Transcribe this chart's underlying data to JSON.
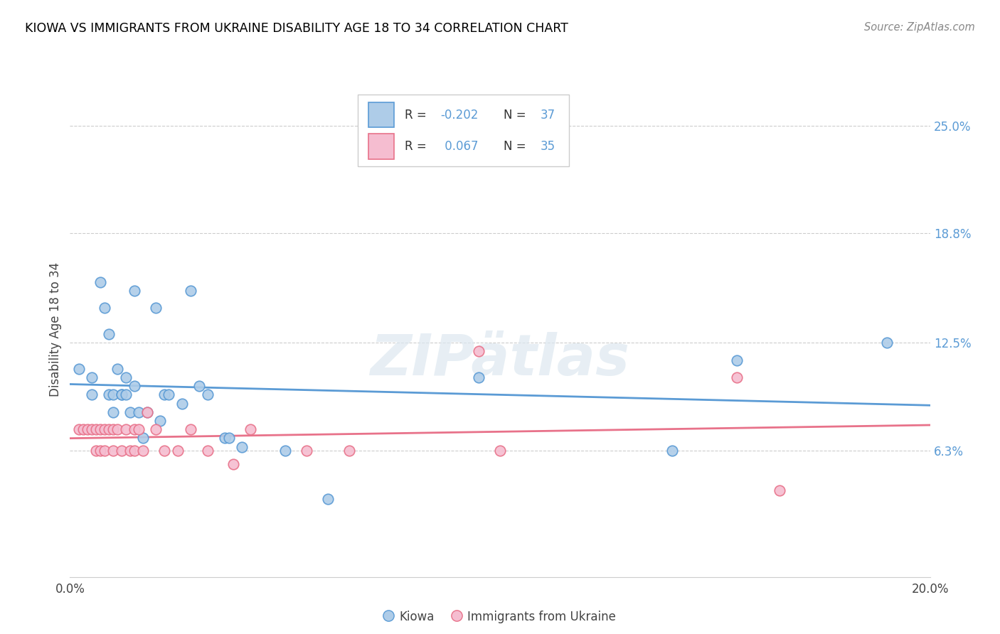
{
  "title": "KIOWA VS IMMIGRANTS FROM UKRAINE DISABILITY AGE 18 TO 34 CORRELATION CHART",
  "source": "Source: ZipAtlas.com",
  "ylabel": "Disability Age 18 to 34",
  "ytick_labels": [
    "6.3%",
    "12.5%",
    "18.8%",
    "25.0%"
  ],
  "ytick_values": [
    0.063,
    0.125,
    0.188,
    0.25
  ],
  "xmin": 0.0,
  "xmax": 0.2,
  "ymin": -0.01,
  "ymax": 0.275,
  "legend_r_kiowa": "-0.202",
  "legend_n_kiowa": "37",
  "legend_r_ukraine": "0.067",
  "legend_n_ukraine": "35",
  "kiowa_color": "#aecce8",
  "ukraine_color": "#f5bdd0",
  "kiowa_line_color": "#5b9bd5",
  "ukraine_line_color": "#e8728a",
  "kiowa_scatter_x": [
    0.002,
    0.005,
    0.005,
    0.007,
    0.008,
    0.009,
    0.009,
    0.01,
    0.01,
    0.011,
    0.012,
    0.012,
    0.013,
    0.013,
    0.014,
    0.015,
    0.015,
    0.016,
    0.017,
    0.018,
    0.02,
    0.021,
    0.022,
    0.023,
    0.026,
    0.028,
    0.03,
    0.032,
    0.036,
    0.037,
    0.04,
    0.05,
    0.06,
    0.095,
    0.14,
    0.155,
    0.19
  ],
  "kiowa_scatter_y": [
    0.11,
    0.105,
    0.095,
    0.16,
    0.145,
    0.13,
    0.095,
    0.095,
    0.085,
    0.11,
    0.095,
    0.095,
    0.105,
    0.095,
    0.085,
    0.155,
    0.1,
    0.085,
    0.07,
    0.085,
    0.145,
    0.08,
    0.095,
    0.095,
    0.09,
    0.155,
    0.1,
    0.095,
    0.07,
    0.07,
    0.065,
    0.063,
    0.035,
    0.105,
    0.063,
    0.115,
    0.125
  ],
  "ukraine_scatter_x": [
    0.002,
    0.003,
    0.004,
    0.005,
    0.006,
    0.006,
    0.007,
    0.007,
    0.008,
    0.008,
    0.009,
    0.01,
    0.01,
    0.011,
    0.012,
    0.013,
    0.014,
    0.015,
    0.015,
    0.016,
    0.017,
    0.018,
    0.02,
    0.022,
    0.025,
    0.028,
    0.032,
    0.038,
    0.042,
    0.055,
    0.065,
    0.095,
    0.1,
    0.155,
    0.165
  ],
  "ukraine_scatter_y": [
    0.075,
    0.075,
    0.075,
    0.075,
    0.075,
    0.063,
    0.075,
    0.063,
    0.075,
    0.063,
    0.075,
    0.075,
    0.063,
    0.075,
    0.063,
    0.075,
    0.063,
    0.075,
    0.063,
    0.075,
    0.063,
    0.085,
    0.075,
    0.063,
    0.063,
    0.075,
    0.063,
    0.055,
    0.075,
    0.063,
    0.063,
    0.12,
    0.063,
    0.105,
    0.04
  ]
}
